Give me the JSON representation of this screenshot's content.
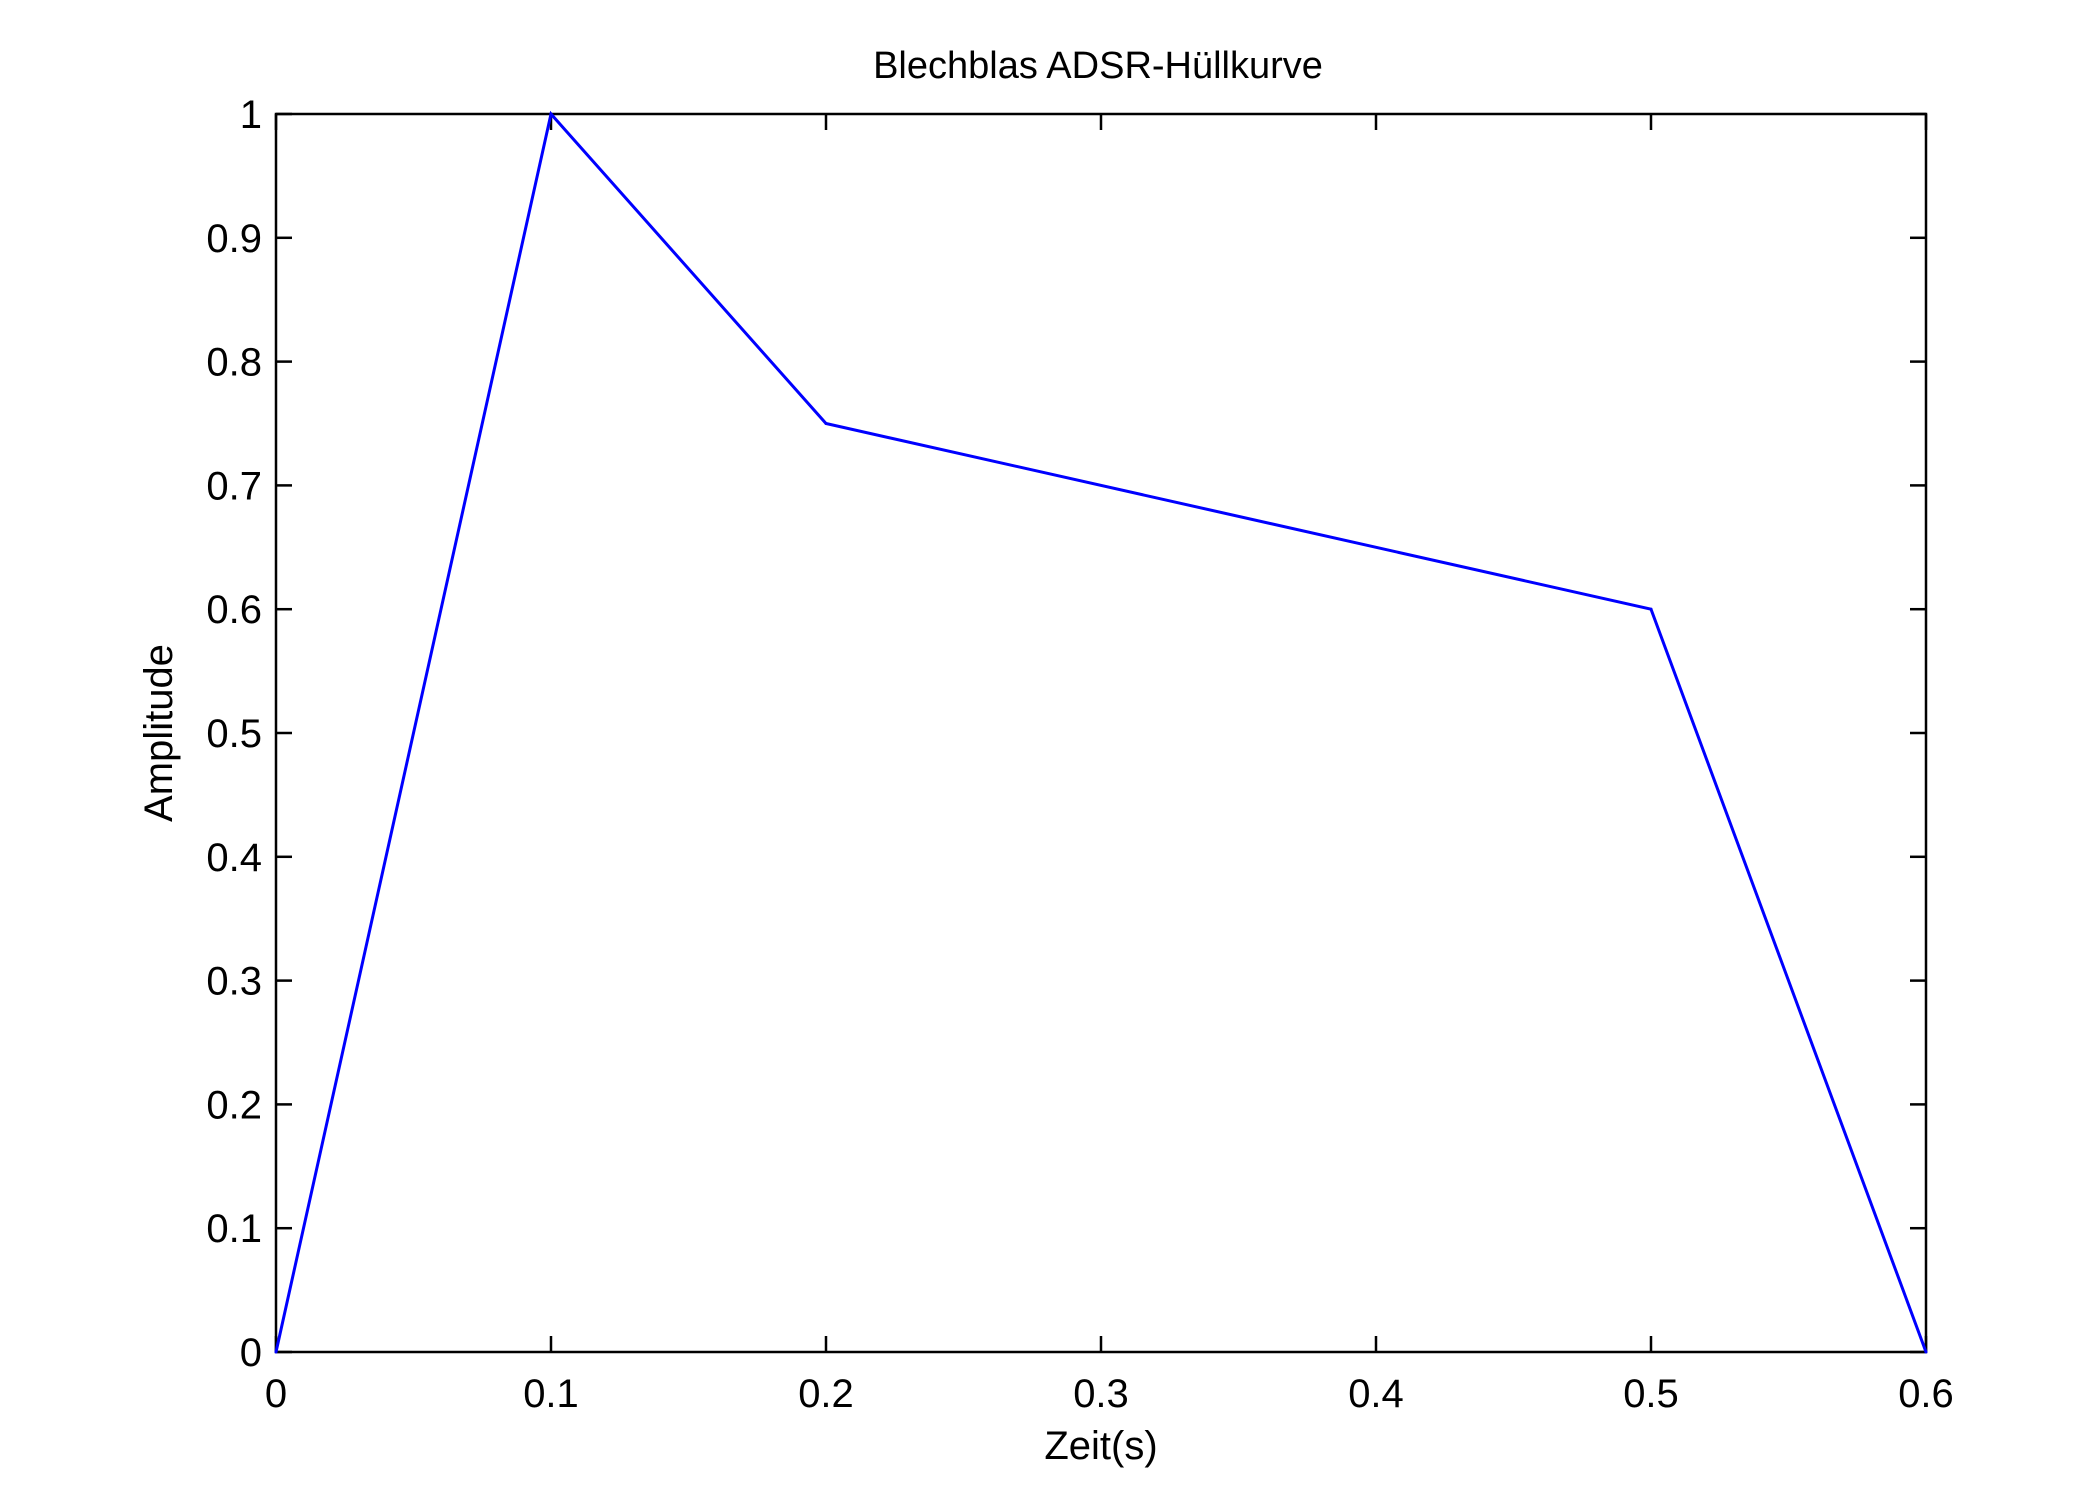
{
  "chart_data": {
    "type": "line",
    "title": "Blechblas ADSR-Hüllkurve",
    "xlabel": "Zeit(s)",
    "ylabel": "Amplitude",
    "xlim": [
      0,
      0.6
    ],
    "ylim": [
      0,
      1
    ],
    "xticks": [
      "0",
      "0.1",
      "0.2",
      "0.3",
      "0.4",
      "0.5",
      "0.6"
    ],
    "yticks": [
      "0",
      "0.1",
      "0.2",
      "0.3",
      "0.4",
      "0.5",
      "0.6",
      "0.7",
      "0.8",
      "0.9",
      "1"
    ],
    "grid": false,
    "legend": "none",
    "series": [
      {
        "color": "#0000ff",
        "x": [
          0,
          0.1,
          0.2,
          0.5,
          0.6
        ],
        "y": [
          0,
          1,
          0.75,
          0.6,
          0
        ]
      }
    ]
  }
}
